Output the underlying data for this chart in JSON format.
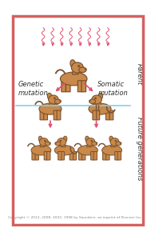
{
  "border_color": "#d46060",
  "bg_color": "#ffffff",
  "dog_fill": "#c8894a",
  "dog_edge": "#7a5230",
  "arrow_color": "#e05070",
  "radiation_color": "#e05070",
  "divider_color": "#87ceeb",
  "text_color": "#333333",
  "label_genetic": "Genetic\nmutation",
  "label_somatic": "Somatic\nmutation",
  "label_parent": "Parent",
  "label_future": "Future generations",
  "copyright": "Copyright © 2012, 2008, 2002, 1998 by Saunders, an imprint of Elsevier Inc.",
  "title_fontsize": 6.0,
  "tiny_fontsize": 3.2
}
